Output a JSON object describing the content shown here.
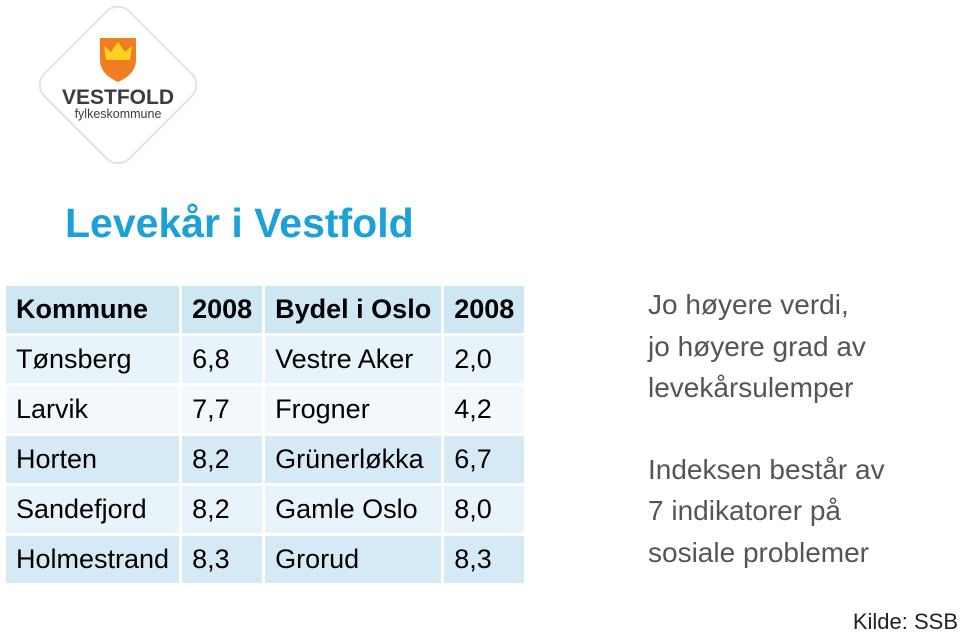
{
  "logo": {
    "name": "VESTFOLD",
    "subtitle": "fylkeskommune"
  },
  "title": "Levekår i Vestfold",
  "table": {
    "header": [
      "Kommune",
      "2008",
      "Bydel i Oslo",
      "2008"
    ],
    "rows": [
      [
        "Tønsberg",
        "6,8",
        "Vestre Aker",
        "2,0"
      ],
      [
        "Larvik",
        "7,7",
        "Frogner",
        "4,2"
      ],
      [
        "Horten",
        "8,2",
        "Grünerløkka",
        "6,7"
      ],
      [
        "Sandefjord",
        "8,2",
        "Gamle Oslo",
        "8,0"
      ],
      [
        "Holmestrand",
        "8,3",
        "Grorud",
        "8,3"
      ]
    ]
  },
  "notes": [
    {
      "lines": [
        "Jo høyere verdi,",
        "jo høyere grad av",
        "levekårsulemper"
      ]
    },
    {
      "lines": [
        "Indeksen består av",
        "7 indikatorer på",
        "sosiale problemer"
      ]
    }
  ],
  "source": "Kilde: SSB"
}
